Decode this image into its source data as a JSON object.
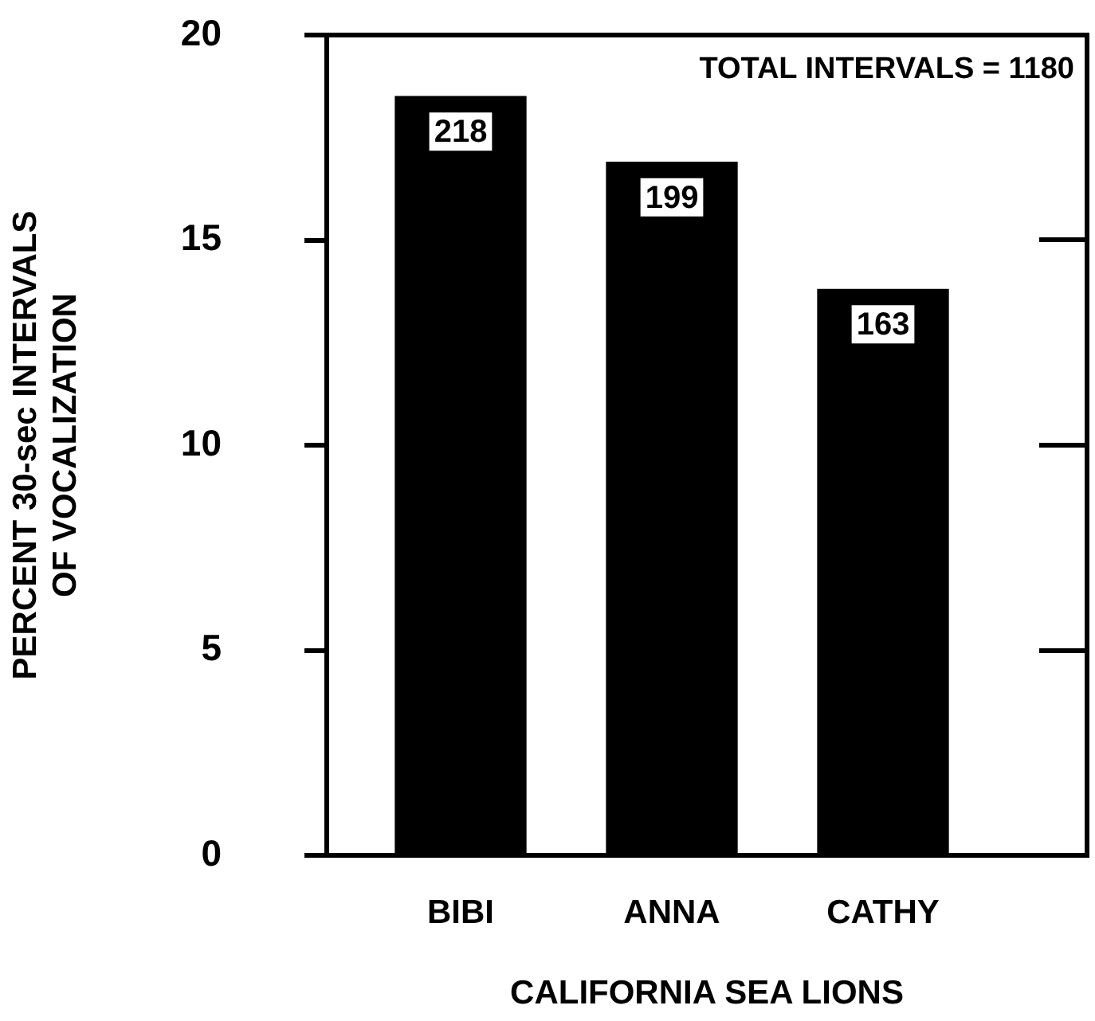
{
  "chart_data": {
    "type": "bar",
    "ylabel": "PERCENT 30-sec INTERVALS\nOF VOCALIZATION",
    "xlabel": "CALIFORNIA SEA LIONS",
    "categories": [
      "BIBI",
      "ANNA",
      "CATHY"
    ],
    "values": [
      18.5,
      16.9,
      13.8
    ],
    "color": "#000000",
    "ylim": [
      0,
      20
    ],
    "yticks": [
      0,
      5,
      10,
      15,
      20
    ],
    "grid": false,
    "legend": false,
    "annotations": [
      "TOTAL INTERVALS = 1180",
      {
        "text": "218",
        "x": "BIBI",
        "y": 18.5
      },
      {
        "text": "199",
        "x": "ANNA",
        "y": 16.9
      },
      {
        "text": "163",
        "x": "CATHY",
        "y": 13.8
      }
    ]
  }
}
